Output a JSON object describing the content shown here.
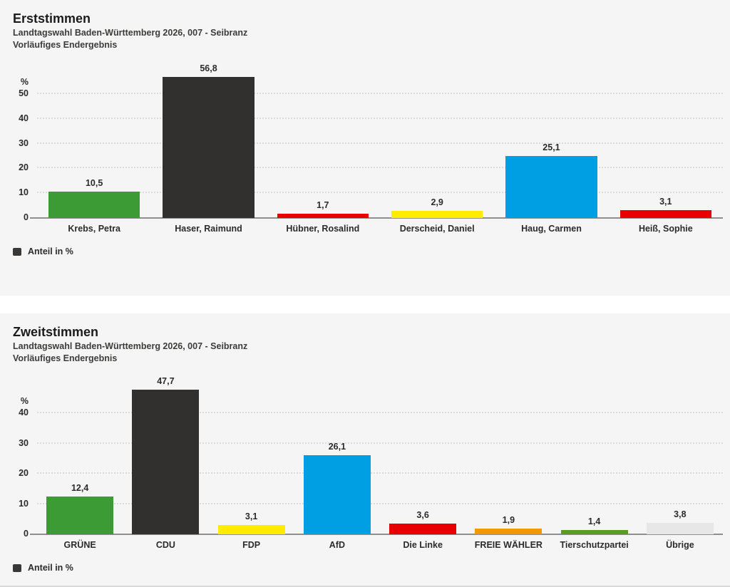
{
  "page": {
    "subtitle_line1": "Landtagswahl Baden-Württemberg 2026, 007 - Seibranz",
    "subtitle_line2": "Vorläufiges Endergebnis"
  },
  "colors": {
    "panel_background": "#f5f5f5",
    "page_background": "#ffffff",
    "baseline": "#8f8f8f",
    "gridline": "#dcdcdc",
    "legend_swatch": "#3a3836",
    "text": "#2b2b2b"
  },
  "chart_data": [
    {
      "type": "bar",
      "title": "Erststimmen",
      "subtitle1": "Landtagswahl Baden-Württemberg 2026, 007 - Seibranz",
      "subtitle2": "Vorläufiges Endergebnis",
      "categories": [
        "Krebs, Petra",
        "Haser, Raimund",
        "Hübner, Rosalind",
        "Derscheid, Daniel",
        "Haug, Carmen",
        "Heiß, Sophie"
      ],
      "values": [
        10.5,
        56.8,
        1.7,
        2.9,
        25.1,
        3.1
      ],
      "value_labels": [
        "10,5",
        "56,8",
        "1,7",
        "2,9",
        "25,1",
        "3,1"
      ],
      "colors": [
        "#3d9b35",
        "#32302e",
        "#e90000",
        "#ffec00",
        "#009ee3",
        "#e90000"
      ],
      "ylabel": "%",
      "yticks": [
        0,
        10,
        20,
        30,
        40,
        50
      ],
      "ylim": [
        0,
        60
      ],
      "grid": "horizontal-dotted",
      "legend": [
        "Anteil in %"
      ],
      "legend_position": "bottom-left"
    },
    {
      "type": "bar",
      "title": "Zweitstimmen",
      "subtitle1": "Landtagswahl Baden-Württemberg 2026, 007 - Seibranz",
      "subtitle2": "Vorläufiges Endergebnis",
      "categories": [
        "GRÜNE",
        "CDU",
        "FDP",
        "AfD",
        "Die Linke",
        "FREIE WÄHLER",
        "Tierschutzpartei",
        "Übrige"
      ],
      "values": [
        12.4,
        47.7,
        3.1,
        26.1,
        3.6,
        1.9,
        1.4,
        3.8
      ],
      "value_labels": [
        "12,4",
        "47,7",
        "3,1",
        "26,1",
        "3,6",
        "1,9",
        "1,4",
        "3,8"
      ],
      "colors": [
        "#3d9b35",
        "#32302e",
        "#ffec00",
        "#009ee3",
        "#e90000",
        "#f49800",
        "#5d9c1e",
        "#e7e7e7"
      ],
      "ylabel": "%",
      "yticks": [
        0,
        10,
        20,
        30,
        40
      ],
      "ylim": [
        0,
        50
      ],
      "grid": "horizontal-dotted",
      "legend": [
        "Anteil in %"
      ],
      "legend_position": "bottom-left"
    }
  ]
}
